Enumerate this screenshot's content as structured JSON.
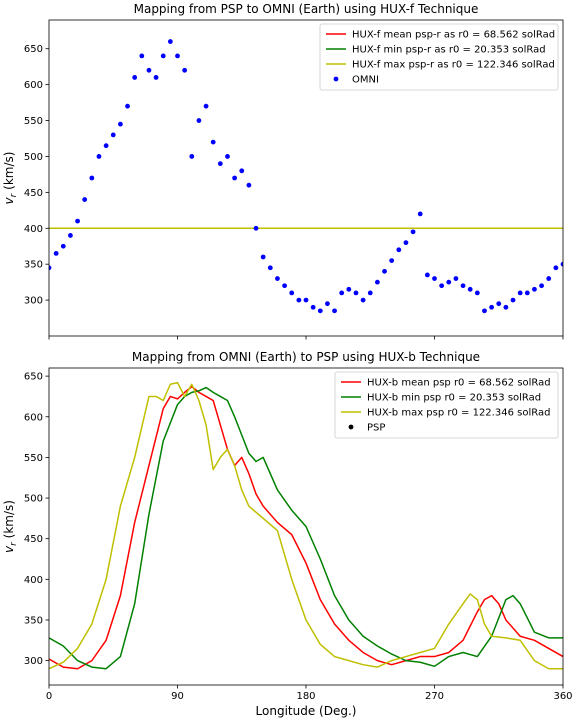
{
  "chart_data": [
    {
      "type": "line",
      "title": "Mapping from PSP to OMNI (Earth) using HUX-f Technique",
      "xlabel": "",
      "ylabel": "v_r (km/s)",
      "ylabel_main": "v",
      "ylabel_sub": "r",
      "ylabel_unit": " (km/s)",
      "xlim": [
        0,
        360
      ],
      "ylim": [
        250,
        690
      ],
      "yticks": [
        300,
        350,
        400,
        450,
        500,
        550,
        600,
        650
      ],
      "xticks": [
        0,
        90,
        180,
        270,
        360
      ],
      "show_xtick_labels": false,
      "grid": false,
      "legend_position": "upper-right",
      "series": [
        {
          "name": "HUX-f mean psp-r as r0 = 68.562 solRad",
          "kind": "line",
          "color": "#ff0000",
          "x": [
            0,
            360
          ],
          "y": [
            400,
            400
          ]
        },
        {
          "name": "HUX-f min psp-r as r0 = 20.353 solRad",
          "kind": "line",
          "color": "#008000",
          "x": [
            0,
            360
          ],
          "y": [
            400,
            400
          ]
        },
        {
          "name": "HUX-f max psp-r as r0 = 122.346 solRad",
          "kind": "line",
          "color": "#bfbf00",
          "x": [
            0,
            360
          ],
          "y": [
            400,
            400
          ]
        },
        {
          "name": "OMNI",
          "kind": "scatter",
          "color": "#0000ff",
          "x": [
            0,
            5,
            10,
            15,
            20,
            25,
            30,
            35,
            40,
            45,
            50,
            55,
            60,
            65,
            70,
            75,
            80,
            85,
            90,
            95,
            100,
            105,
            110,
            115,
            120,
            125,
            130,
            135,
            140,
            145,
            150,
            155,
            160,
            165,
            170,
            175,
            180,
            185,
            190,
            195,
            200,
            205,
            210,
            215,
            220,
            225,
            230,
            235,
            240,
            245,
            250,
            255,
            260,
            265,
            270,
            275,
            280,
            285,
            290,
            295,
            300,
            305,
            310,
            315,
            320,
            325,
            330,
            335,
            340,
            345,
            350,
            355,
            360
          ],
          "y": [
            345,
            365,
            375,
            390,
            410,
            440,
            470,
            500,
            515,
            530,
            545,
            570,
            610,
            640,
            620,
            610,
            640,
            660,
            640,
            620,
            500,
            550,
            570,
            520,
            490,
            500,
            470,
            480,
            460,
            400,
            360,
            345,
            330,
            320,
            310,
            300,
            300,
            290,
            285,
            295,
            285,
            310,
            315,
            310,
            300,
            310,
            325,
            340,
            355,
            370,
            380,
            395,
            420,
            335,
            330,
            320,
            325,
            330,
            320,
            315,
            310,
            285,
            290,
            295,
            290,
            300,
            310,
            310,
            315,
            320,
            330,
            345,
            350
          ]
        }
      ]
    },
    {
      "type": "line",
      "title": "Mapping from OMNI (Earth) to PSP using HUX-b Technique",
      "xlabel": "Longitude (Deg.)",
      "ylabel": "v_r (km/s)",
      "ylabel_main": "v",
      "ylabel_sub": "r",
      "ylabel_unit": " (km/s)",
      "xlim": [
        0,
        360
      ],
      "ylim": [
        270,
        660
      ],
      "yticks": [
        300,
        350,
        400,
        450,
        500,
        550,
        600,
        650
      ],
      "xticks": [
        0,
        90,
        180,
        270,
        360
      ],
      "show_xtick_labels": true,
      "grid": false,
      "legend_position": "upper-right",
      "series": [
        {
          "name": "HUX-b mean psp r0 = 68.562 solRad",
          "kind": "line",
          "color": "#ff0000",
          "x": [
            0,
            10,
            20,
            30,
            40,
            50,
            60,
            70,
            80,
            85,
            90,
            95,
            100,
            105,
            110,
            115,
            120,
            125,
            130,
            135,
            140,
            145,
            150,
            160,
            170,
            180,
            190,
            200,
            210,
            220,
            230,
            240,
            250,
            260,
            270,
            280,
            290,
            300,
            305,
            310,
            315,
            320,
            330,
            340,
            350,
            360
          ],
          "y": [
            302,
            292,
            290,
            300,
            325,
            380,
            470,
            540,
            610,
            625,
            622,
            630,
            637,
            630,
            625,
            620,
            590,
            560,
            540,
            550,
            530,
            505,
            490,
            470,
            455,
            420,
            375,
            345,
            325,
            310,
            300,
            295,
            300,
            305,
            305,
            310,
            325,
            360,
            375,
            380,
            370,
            350,
            330,
            325,
            315,
            305
          ]
        },
        {
          "name": "HUX-b min psp r0 = 20.353 solRad",
          "kind": "line",
          "color": "#008000",
          "x": [
            0,
            10,
            20,
            30,
            40,
            50,
            60,
            70,
            80,
            90,
            95,
            100,
            105,
            110,
            115,
            120,
            125,
            130,
            140,
            145,
            150,
            155,
            160,
            170,
            180,
            190,
            200,
            210,
            220,
            230,
            240,
            250,
            260,
            270,
            280,
            290,
            300,
            310,
            320,
            325,
            330,
            340,
            350,
            360
          ],
          "y": [
            328,
            318,
            300,
            292,
            290,
            305,
            370,
            480,
            570,
            615,
            625,
            630,
            632,
            636,
            630,
            625,
            620,
            600,
            555,
            545,
            550,
            530,
            510,
            485,
            465,
            425,
            380,
            350,
            330,
            318,
            308,
            300,
            298,
            293,
            305,
            310,
            305,
            330,
            375,
            380,
            370,
            335,
            328,
            328
          ]
        },
        {
          "name": "HUX-b max psp r0 = 122.346 solRad",
          "kind": "line",
          "color": "#bfbf00",
          "x": [
            0,
            10,
            20,
            30,
            40,
            50,
            60,
            70,
            75,
            80,
            85,
            90,
            95,
            100,
            105,
            110,
            115,
            120,
            125,
            130,
            135,
            140,
            150,
            160,
            170,
            180,
            190,
            200,
            210,
            220,
            230,
            240,
            250,
            260,
            270,
            280,
            290,
            295,
            300,
            305,
            310,
            320,
            330,
            340,
            350,
            360
          ],
          "y": [
            290,
            298,
            315,
            345,
            400,
            490,
            550,
            625,
            625,
            620,
            640,
            642,
            625,
            640,
            620,
            590,
            535,
            550,
            560,
            540,
            510,
            490,
            475,
            460,
            400,
            350,
            320,
            305,
            300,
            295,
            292,
            300,
            305,
            310,
            315,
            345,
            370,
            382,
            375,
            345,
            330,
            328,
            325,
            300,
            290,
            290
          ]
        },
        {
          "name": "PSP",
          "kind": "scatter",
          "color": "#000000",
          "x": [],
          "y": []
        }
      ]
    }
  ]
}
